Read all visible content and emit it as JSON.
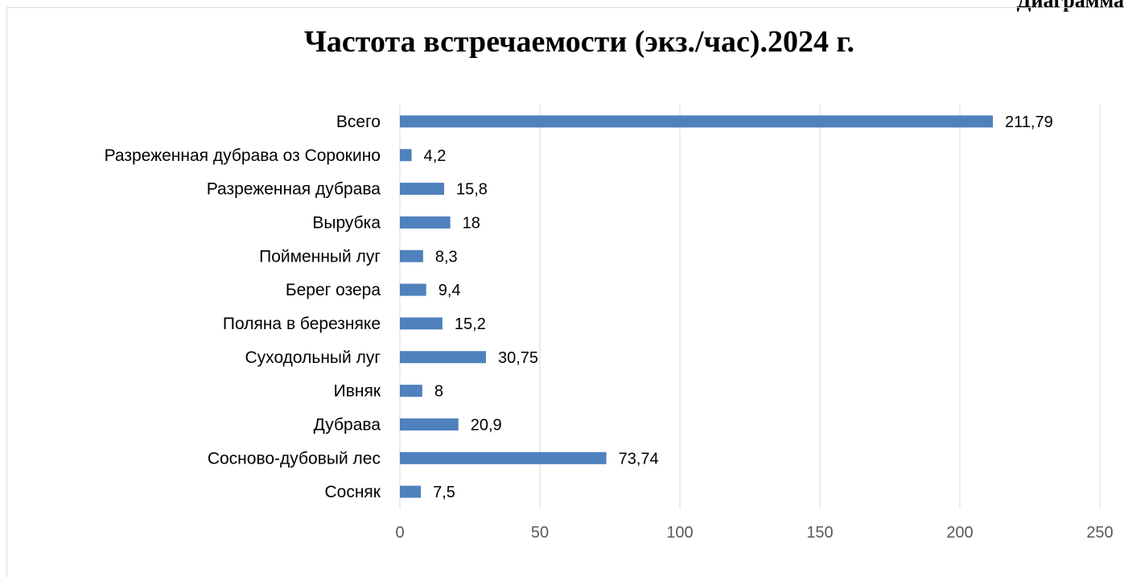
{
  "page": {
    "corner_text": "Диаграмма"
  },
  "chart_data": {
    "type": "bar",
    "orientation": "horizontal",
    "title": "Частота встречаемости (экз./час).2024 г.",
    "xlabel": "",
    "ylabel": "",
    "categories": [
      "Всего",
      "Разреженная дубрава оз Сорокино",
      "Разреженная дубрава",
      "Вырубка",
      "Пойменный луг",
      "Берег озера",
      "Поляна в березняке",
      "Суходольный луг",
      "Ивняк",
      "Дубрава",
      "Сосново-дубовый лес",
      "Сосняк"
    ],
    "values": [
      211.79,
      4.2,
      15.8,
      18,
      8.3,
      9.4,
      15.2,
      30.75,
      8,
      20.9,
      73.74,
      7.5
    ],
    "value_labels": [
      "211,79",
      "4,2",
      "15,8",
      "18",
      "8,3",
      "9,4",
      "15,2",
      "30,75",
      "8",
      "20,9",
      "73,74",
      "7,5"
    ],
    "xlim": [
      0,
      250
    ],
    "x_ticks": [
      0,
      50,
      100,
      150,
      200,
      250
    ],
    "x_tick_labels": [
      "0",
      "50",
      "100",
      "150",
      "200",
      "250"
    ],
    "grid": "vertical",
    "legend": "none",
    "bar_color": "#4f81bd",
    "grid_color": "#d9d9d9"
  }
}
